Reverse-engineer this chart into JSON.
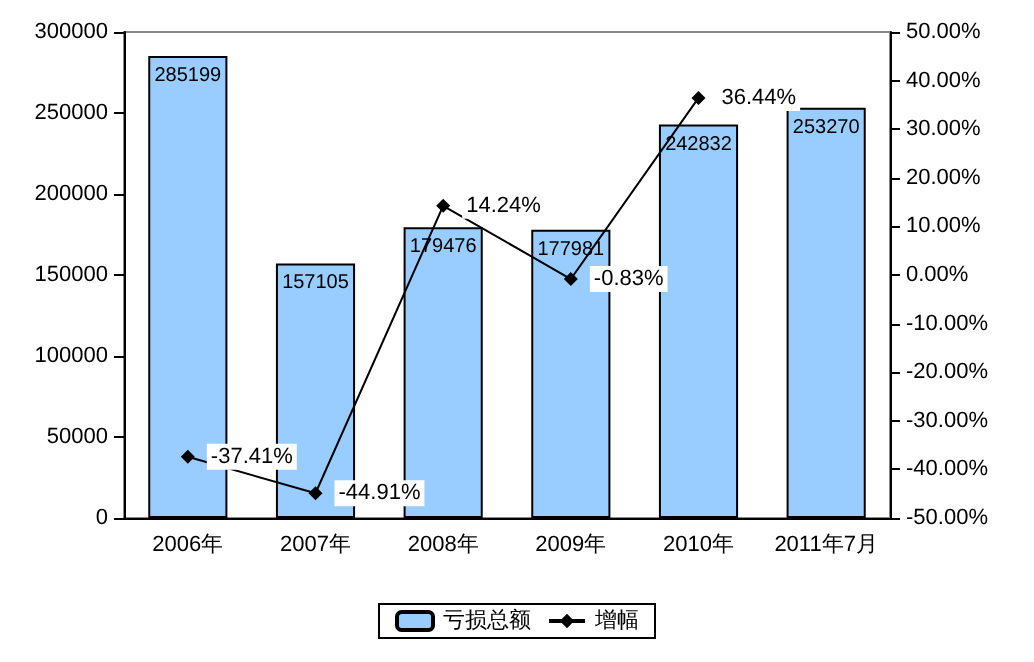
{
  "chart_data": {
    "type": "bar",
    "categories": [
      "2006年",
      "2007年",
      "2008年",
      "2009年",
      "2010年",
      "2011年7月"
    ],
    "series": [
      {
        "name": "亏损总额",
        "color": "#99ccff",
        "values": [
          285199,
          157105,
          179476,
          177981,
          242832,
          253270
        ],
        "value_labels": [
          "285199",
          "157105",
          "179476",
          "177981",
          "242832",
          "253270"
        ]
      },
      {
        "name": "增幅",
        "type": "line",
        "axis": "y2",
        "color": "#000000",
        "values": [
          -37.41,
          -44.91,
          14.24,
          -0.83,
          36.44,
          null
        ],
        "value_labels": [
          "-37.41%",
          "-44.91%",
          "14.24%",
          "-0.83%",
          "36.44%",
          null
        ]
      }
    ],
    "ylim": [
      0,
      300000
    ],
    "yticks": [
      0,
      50000,
      100000,
      150000,
      200000,
      250000,
      300000
    ],
    "y2lim": [
      -50,
      50
    ],
    "y2ticks": [
      {
        "value": -50,
        "label": "-50.00%"
      },
      {
        "value": -40,
        "label": "-40.00%"
      },
      {
        "value": -30,
        "label": "-30.00%"
      },
      {
        "value": -20,
        "label": "-20.00%"
      },
      {
        "value": -10,
        "label": "-10.00%"
      },
      {
        "value": 0,
        "label": "0.00%"
      },
      {
        "value": 10,
        "label": "10.00%"
      },
      {
        "value": 20,
        "label": "20.00%"
      },
      {
        "value": 30,
        "label": "30.00%"
      },
      {
        "value": 40,
        "label": "40.00%"
      },
      {
        "value": 50,
        "label": "50.00%"
      }
    ],
    "legend": "bottom",
    "marker": "diamond",
    "line_style": "solid",
    "grid": false
  }
}
